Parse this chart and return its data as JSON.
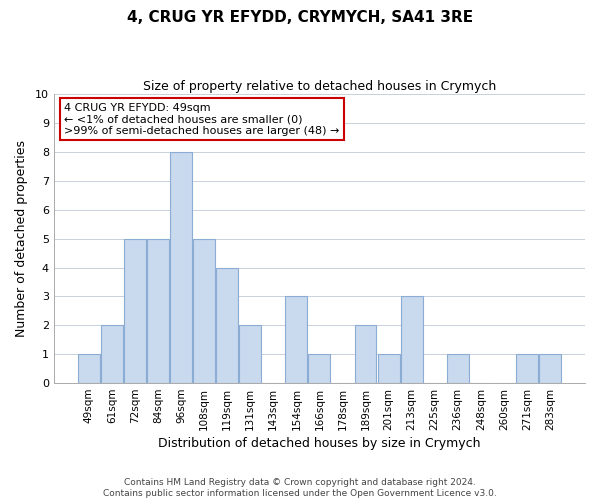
{
  "title": "4, CRUG YR EFYDD, CRYMYCH, SA41 3RE",
  "subtitle": "Size of property relative to detached houses in Crymych",
  "xlabel": "Distribution of detached houses by size in Crymych",
  "ylabel": "Number of detached properties",
  "categories": [
    "49sqm",
    "61sqm",
    "72sqm",
    "84sqm",
    "96sqm",
    "108sqm",
    "119sqm",
    "131sqm",
    "143sqm",
    "154sqm",
    "166sqm",
    "178sqm",
    "189sqm",
    "201sqm",
    "213sqm",
    "225sqm",
    "236sqm",
    "248sqm",
    "260sqm",
    "271sqm",
    "283sqm"
  ],
  "values": [
    1,
    2,
    5,
    5,
    8,
    5,
    4,
    2,
    0,
    3,
    1,
    0,
    2,
    1,
    3,
    0,
    1,
    0,
    0,
    1,
    1
  ],
  "bar_color": "#c9d9ee",
  "bar_edge_color": "#8badd4",
  "ylim": [
    0,
    10
  ],
  "yticks": [
    0,
    1,
    2,
    3,
    4,
    5,
    6,
    7,
    8,
    9,
    10
  ],
  "annotation_lines": [
    "4 CRUG YR EFYDD: 49sqm",
    "← <1% of detached houses are smaller (0)",
    ">99% of semi-detached houses are larger (48) →"
  ],
  "annotation_box_edge": "#cc0000",
  "footer_line1": "Contains HM Land Registry data © Crown copyright and database right 2024.",
  "footer_line2": "Contains public sector information licensed under the Open Government Licence v3.0.",
  "background_color": "#ffffff",
  "grid_color": "#c8d0dc",
  "title_fontsize": 11,
  "subtitle_fontsize": 9,
  "xlabel_fontsize": 9,
  "ylabel_fontsize": 9,
  "xtick_fontsize": 7.5,
  "ytick_fontsize": 8,
  "footer_fontsize": 6.5,
  "ann_fontsize": 8
}
